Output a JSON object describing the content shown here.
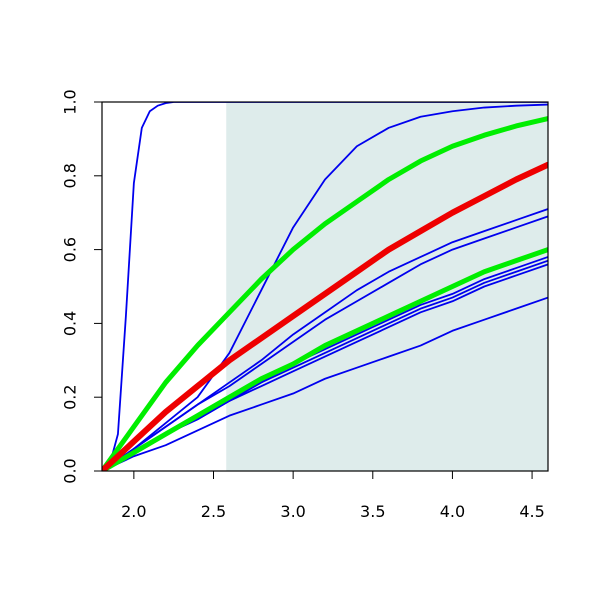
{
  "chart_data": {
    "type": "line",
    "title": "",
    "xlabel": "",
    "ylabel": "",
    "xlim": [
      1.8,
      4.6
    ],
    "ylim": [
      0.0,
      1.0
    ],
    "x_ticks": [
      2.0,
      2.5,
      3.0,
      3.5,
      4.0,
      4.5
    ],
    "x_tick_labels": [
      "2.0",
      "2.5",
      "3.0",
      "3.5",
      "4.0",
      "4.5"
    ],
    "y_ticks": [
      0.0,
      0.2,
      0.4,
      0.6,
      0.8,
      1.0
    ],
    "y_tick_labels": [
      "0.0",
      "0.2",
      "0.4",
      "0.6",
      "0.8",
      "1.0"
    ],
    "grid": false,
    "legend": "none",
    "shaded_region": {
      "x_from": 2.58,
      "x_to": 4.6,
      "color": "#deeceb"
    },
    "colors": {
      "blue": "#0000ee",
      "green": "#00ee00",
      "red": "#ee0000"
    },
    "series": [
      {
        "color": "blue",
        "width": 1.8,
        "x": [
          1.8,
          1.85,
          1.9,
          1.95,
          2.0,
          2.05,
          2.1,
          2.15,
          2.2,
          2.25,
          2.3,
          2.4,
          2.5,
          2.6,
          3.0,
          4.6
        ],
        "y": [
          0.0,
          0.02,
          0.1,
          0.42,
          0.78,
          0.93,
          0.975,
          0.99,
          0.997,
          1.0,
          1.0,
          1.0,
          1.0,
          1.0,
          1.0,
          1.0
        ]
      },
      {
        "color": "blue",
        "width": 1.8,
        "x": [
          1.8,
          2.0,
          2.2,
          2.4,
          2.6,
          2.8,
          3.0,
          3.2,
          3.4,
          3.6,
          3.8,
          4.0,
          4.2,
          4.4,
          4.6
        ],
        "y": [
          0.0,
          0.06,
          0.13,
          0.2,
          0.32,
          0.49,
          0.66,
          0.79,
          0.88,
          0.93,
          0.96,
          0.975,
          0.985,
          0.99,
          0.993
        ]
      },
      {
        "color": "blue",
        "width": 1.8,
        "x": [
          1.8,
          2.0,
          2.2,
          2.4,
          2.6,
          2.8,
          3.0,
          3.2,
          3.4,
          3.6,
          3.8,
          4.0,
          4.2,
          4.4,
          4.6
        ],
        "y": [
          0.0,
          0.06,
          0.12,
          0.18,
          0.24,
          0.3,
          0.37,
          0.43,
          0.49,
          0.54,
          0.58,
          0.62,
          0.65,
          0.68,
          0.71
        ]
      },
      {
        "color": "blue",
        "width": 1.8,
        "x": [
          1.8,
          2.0,
          2.2,
          2.4,
          2.6,
          2.8,
          3.0,
          3.2,
          3.4,
          3.6,
          3.8,
          4.0,
          4.2,
          4.4,
          4.6
        ],
        "y": [
          0.0,
          0.06,
          0.12,
          0.18,
          0.23,
          0.29,
          0.35,
          0.41,
          0.46,
          0.51,
          0.56,
          0.6,
          0.63,
          0.66,
          0.69
        ]
      },
      {
        "color": "blue",
        "width": 1.8,
        "x": [
          1.8,
          2.0,
          2.2,
          2.4,
          2.6,
          2.8,
          3.0,
          3.2,
          3.4,
          3.6,
          3.8,
          4.0,
          4.2,
          4.4,
          4.6
        ],
        "y": [
          0.0,
          0.05,
          0.1,
          0.15,
          0.2,
          0.24,
          0.29,
          0.33,
          0.37,
          0.41,
          0.45,
          0.48,
          0.52,
          0.55,
          0.58
        ]
      },
      {
        "color": "blue",
        "width": 1.8,
        "x": [
          1.8,
          2.0,
          2.2,
          2.4,
          2.6,
          2.8,
          3.0,
          3.2,
          3.4,
          3.6,
          3.8,
          4.0,
          4.2,
          4.4,
          4.6
        ],
        "y": [
          0.0,
          0.05,
          0.1,
          0.14,
          0.19,
          0.24,
          0.28,
          0.32,
          0.36,
          0.4,
          0.44,
          0.47,
          0.51,
          0.54,
          0.57
        ]
      },
      {
        "color": "blue",
        "width": 1.8,
        "x": [
          1.8,
          2.0,
          2.2,
          2.4,
          2.6,
          2.8,
          3.0,
          3.2,
          3.4,
          3.6,
          3.8,
          4.0,
          4.2,
          4.4,
          4.6
        ],
        "y": [
          0.0,
          0.05,
          0.1,
          0.14,
          0.19,
          0.23,
          0.27,
          0.31,
          0.35,
          0.39,
          0.43,
          0.46,
          0.5,
          0.53,
          0.56
        ]
      },
      {
        "color": "blue",
        "width": 1.8,
        "x": [
          1.8,
          2.0,
          2.2,
          2.4,
          2.6,
          2.8,
          3.0,
          3.2,
          3.4,
          3.6,
          3.8,
          4.0,
          4.2,
          4.4,
          4.6
        ],
        "y": [
          0.0,
          0.04,
          0.07,
          0.11,
          0.15,
          0.18,
          0.21,
          0.25,
          0.28,
          0.31,
          0.34,
          0.38,
          0.41,
          0.44,
          0.47
        ]
      },
      {
        "color": "green",
        "width": 5,
        "x": [
          1.8,
          2.0,
          2.2,
          2.4,
          2.6,
          2.8,
          3.0,
          3.2,
          3.4,
          3.6,
          3.8,
          4.0,
          4.2,
          4.4,
          4.6
        ],
        "y": [
          0.0,
          0.12,
          0.24,
          0.34,
          0.43,
          0.52,
          0.6,
          0.67,
          0.73,
          0.79,
          0.84,
          0.88,
          0.91,
          0.935,
          0.955
        ]
      },
      {
        "color": "green",
        "width": 5,
        "x": [
          1.8,
          2.0,
          2.2,
          2.4,
          2.6,
          2.8,
          3.0,
          3.2,
          3.4,
          3.6,
          3.8,
          4.0,
          4.2,
          4.4,
          4.6
        ],
        "y": [
          0.0,
          0.05,
          0.1,
          0.15,
          0.2,
          0.25,
          0.29,
          0.34,
          0.38,
          0.42,
          0.46,
          0.5,
          0.54,
          0.57,
          0.6
        ]
      },
      {
        "color": "red",
        "width": 6,
        "x": [
          1.8,
          2.0,
          2.2,
          2.4,
          2.6,
          2.8,
          3.0,
          3.2,
          3.4,
          3.6,
          3.8,
          4.0,
          4.2,
          4.4,
          4.6
        ],
        "y": [
          0.0,
          0.08,
          0.16,
          0.23,
          0.3,
          0.36,
          0.42,
          0.48,
          0.54,
          0.6,
          0.65,
          0.7,
          0.745,
          0.79,
          0.83
        ]
      }
    ]
  }
}
